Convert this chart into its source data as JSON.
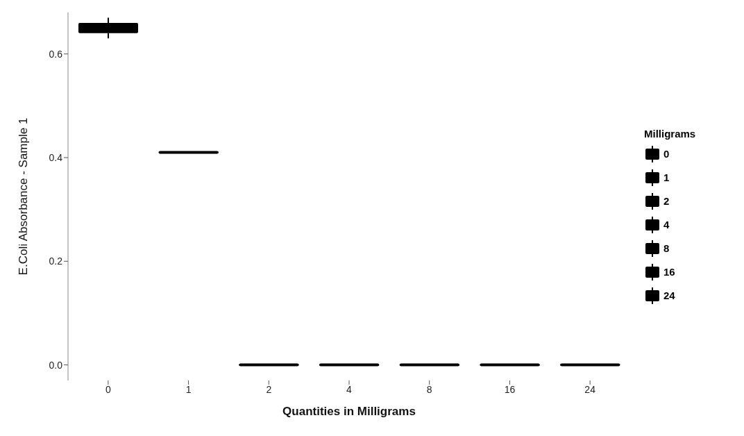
{
  "chart_data": {
    "type": "box",
    "xlabel": "Quantities in Milligrams",
    "ylabel": "E.Coli Absorbance - Sample 1",
    "legend_title": "Milligrams",
    "colors": [
      "#000000",
      "#000000",
      "#000000",
      "#000000",
      "#000000",
      "#000000",
      "#000000"
    ],
    "categories": [
      "0",
      "1",
      "2",
      "4",
      "8",
      "16",
      "24"
    ],
    "boxes": [
      {
        "low": 0.63,
        "q1": 0.64,
        "median": 0.65,
        "q3": 0.66,
        "high": 0.67
      },
      {
        "low": 0.41,
        "q1": 0.41,
        "median": 0.41,
        "q3": 0.41,
        "high": 0.41
      },
      {
        "low": 0,
        "q1": 0,
        "median": 0,
        "q3": 0,
        "high": 0
      },
      {
        "low": 0,
        "q1": 0,
        "median": 0,
        "q3": 0,
        "high": 0
      },
      {
        "low": 0,
        "q1": 0,
        "median": 0,
        "q3": 0,
        "high": 0
      },
      {
        "low": 0,
        "q1": 0,
        "median": 0,
        "q3": 0,
        "high": 0
      },
      {
        "low": 0,
        "q1": 0,
        "median": 0,
        "q3": 0,
        "high": 0
      }
    ],
    "ylim": [
      -0.03,
      0.68
    ],
    "yticks": [
      {
        "value": 0,
        "label": "0.0"
      },
      {
        "value": 0.2,
        "label": "0.2"
      },
      {
        "value": 0.4,
        "label": "0.4"
      },
      {
        "value": 0.6,
        "label": "0.6"
      }
    ],
    "grid": false
  }
}
